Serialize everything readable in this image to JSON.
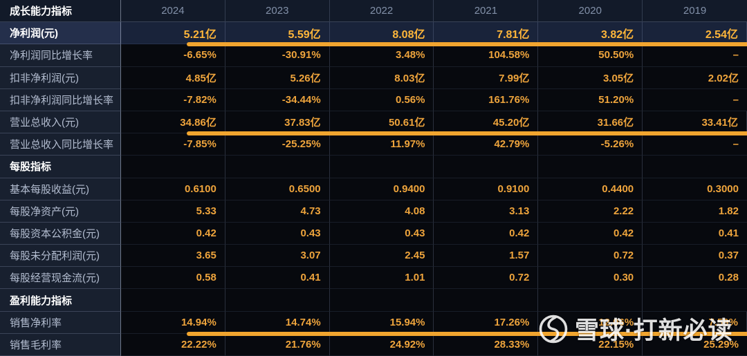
{
  "colors": {
    "accent_orange": "#F1A52F",
    "value_text": "#EEA43C",
    "background": "#05070C",
    "highlight_row_bg": "#19233A",
    "label_column_bg": "#18202F"
  },
  "watermark": {
    "logo": "xueqiu-snowball-logo",
    "text": "雪球·打新必读"
  },
  "table": {
    "header": {
      "label": "成长能力指标",
      "years": [
        "2024",
        "2023",
        "2022",
        "2021",
        "2020",
        "2019"
      ]
    },
    "rows": [
      {
        "type": "data",
        "highlight": true,
        "underline": true,
        "label": "净利润(元)",
        "values": [
          "5.21亿",
          "5.59亿",
          "8.08亿",
          "7.81亿",
          "3.82亿",
          "2.54亿"
        ]
      },
      {
        "type": "data",
        "label": "净利润同比增长率",
        "values": [
          "-6.65%",
          "-30.91%",
          "3.48%",
          "104.58%",
          "50.50%",
          "–"
        ]
      },
      {
        "type": "data",
        "label": "扣非净利润(元)",
        "values": [
          "4.85亿",
          "5.26亿",
          "8.03亿",
          "7.99亿",
          "3.05亿",
          "2.02亿"
        ]
      },
      {
        "type": "data",
        "label": "扣非净利润同比增长率",
        "values": [
          "-7.82%",
          "-34.44%",
          "0.56%",
          "161.76%",
          "51.20%",
          "–"
        ]
      },
      {
        "type": "data",
        "underline": true,
        "label": "营业总收入(元)",
        "values": [
          "34.86亿",
          "37.83亿",
          "50.61亿",
          "45.20亿",
          "31.66亿",
          "33.41亿"
        ]
      },
      {
        "type": "data",
        "label": "营业总收入同比增长率",
        "values": [
          "-7.85%",
          "-25.25%",
          "11.97%",
          "42.79%",
          "-5.26%",
          "–"
        ]
      },
      {
        "type": "section",
        "label": "每股指标",
        "values": [
          "",
          "",
          "",
          "",
          "",
          ""
        ]
      },
      {
        "type": "data",
        "label": "基本每股收益(元)",
        "values": [
          "0.6100",
          "0.6500",
          "0.9400",
          "0.9100",
          "0.4400",
          "0.3000"
        ]
      },
      {
        "type": "data",
        "label": "每股净资产(元)",
        "values": [
          "5.33",
          "4.73",
          "4.08",
          "3.13",
          "2.22",
          "1.82"
        ]
      },
      {
        "type": "data",
        "label": "每股资本公积金(元)",
        "values": [
          "0.42",
          "0.43",
          "0.43",
          "0.42",
          "0.42",
          "0.41"
        ]
      },
      {
        "type": "data",
        "label": "每股未分配利润(元)",
        "values": [
          "3.65",
          "3.07",
          "2.45",
          "1.57",
          "0.72",
          "0.37"
        ]
      },
      {
        "type": "data",
        "label": "每股经营现金流(元)",
        "values": [
          "0.58",
          "0.41",
          "1.01",
          "0.72",
          "0.30",
          "0.28"
        ]
      },
      {
        "type": "section",
        "label": "盈利能力指标",
        "values": [
          "",
          "",
          "",
          "",
          "",
          ""
        ]
      },
      {
        "type": "data",
        "underline": true,
        "label": "销售净利率",
        "values": [
          "14.94%",
          "14.74%",
          "15.94%",
          "17.26%",
          "12.06%",
          "7.59%"
        ]
      },
      {
        "type": "data",
        "label": "销售毛利率",
        "values": [
          "22.22%",
          "21.76%",
          "24.92%",
          "28.33%",
          "22.15%",
          "25.29%"
        ]
      }
    ]
  }
}
